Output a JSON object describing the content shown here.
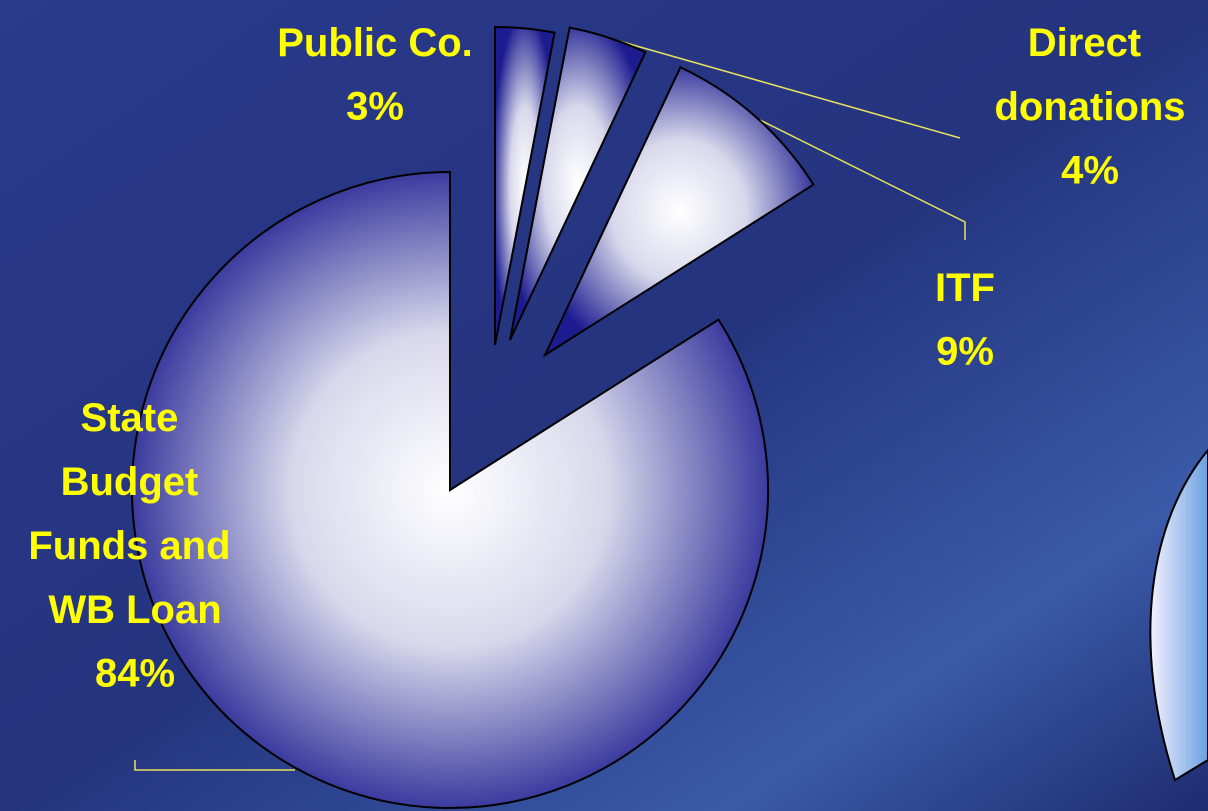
{
  "chart_data": {
    "type": "pie",
    "categories": [
      "Public Co.",
      "Direct donations",
      "ITF",
      "State Budget Funds and WB Loan"
    ],
    "values": [
      3,
      4,
      9,
      84
    ],
    "value_labels": [
      "3%",
      "4%",
      "9%",
      "84%"
    ],
    "label_color": "#ffff00"
  }
}
